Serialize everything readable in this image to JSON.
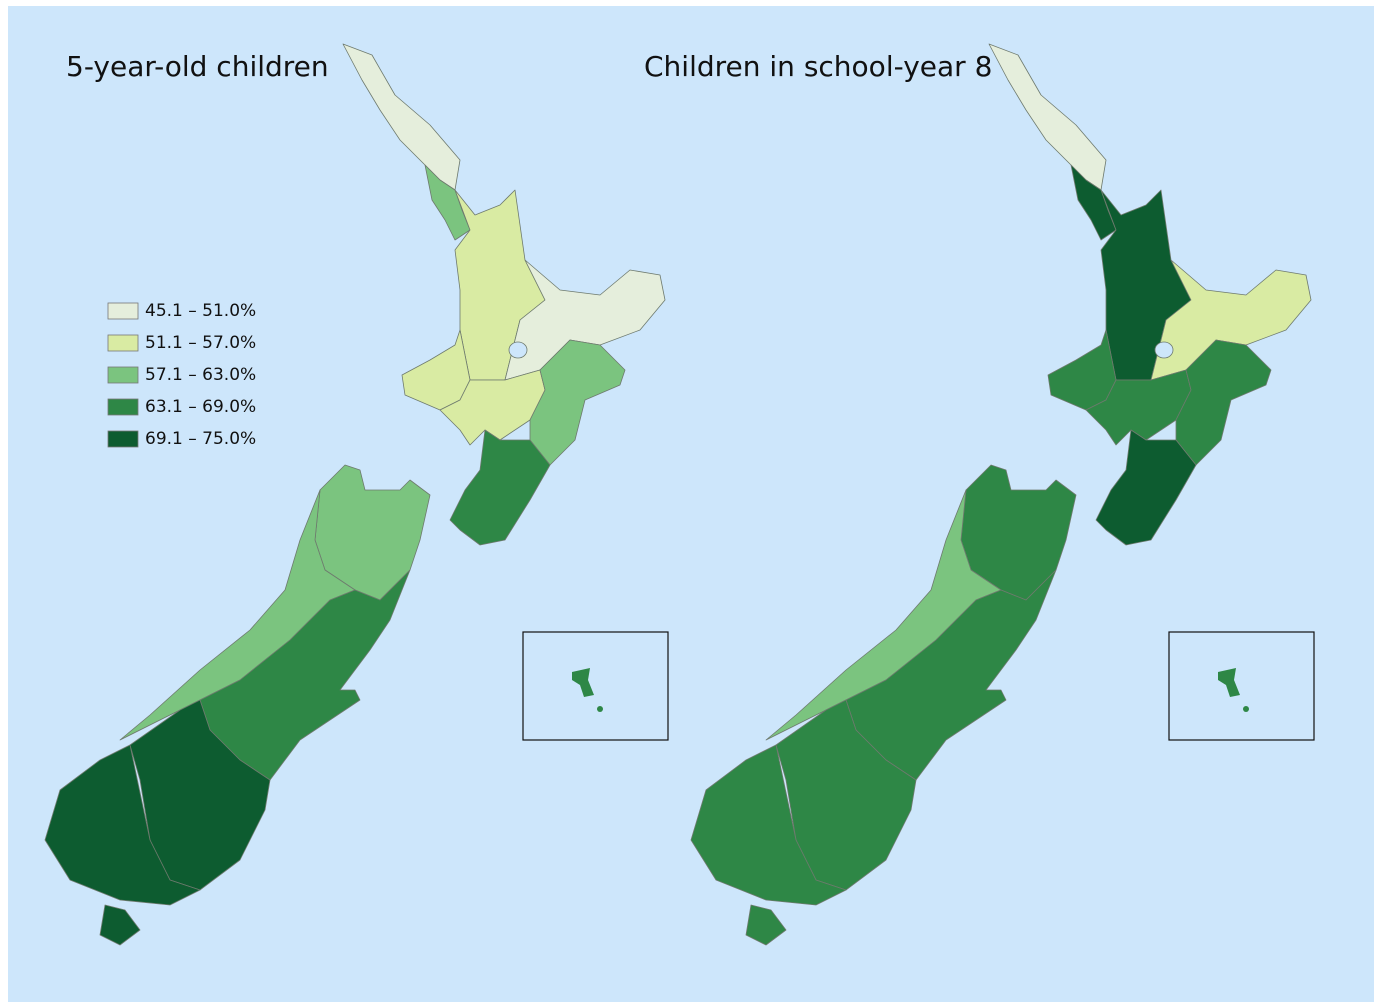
{
  "maps": [
    {
      "title": "5-year-old children"
    },
    {
      "title": "Children in school-year 8"
    }
  ],
  "legend": {
    "items": [
      {
        "label": "45.1 – 51.0%",
        "color": "#e5eedc"
      },
      {
        "label": "51.1 – 57.0%",
        "color": "#d9eba3"
      },
      {
        "label": "57.1 – 63.0%",
        "color": "#7bc47f"
      },
      {
        "label": "63.1 – 69.0%",
        "color": "#2e8746"
      },
      {
        "label": "69.1 – 75.0%",
        "color": "#0d5c30"
      }
    ]
  }
}
